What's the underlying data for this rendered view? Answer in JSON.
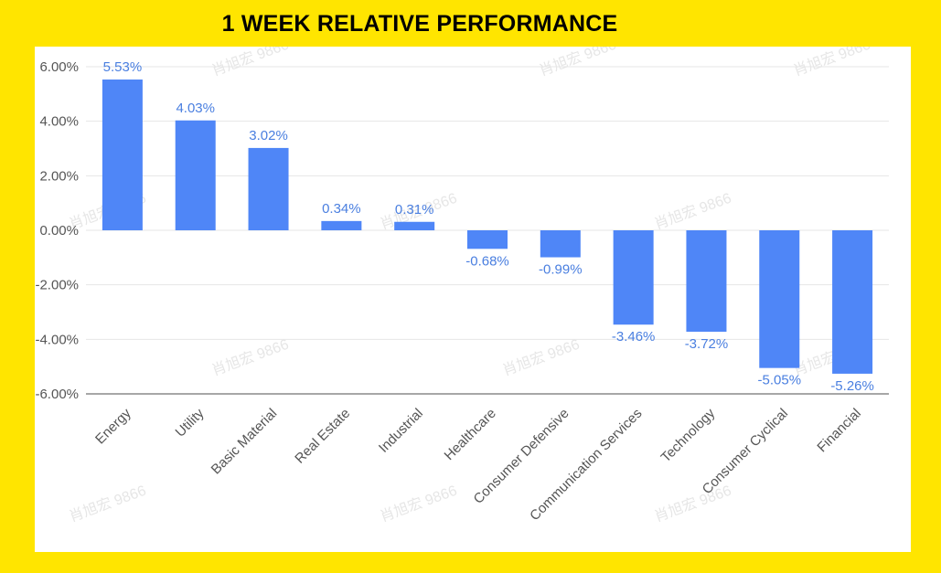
{
  "chart_data": {
    "type": "bar",
    "title": "1 WEEK RELATIVE PERFORMANCE",
    "categories": [
      "Energy",
      "Utility",
      "Basic Material",
      "Real Estate",
      "Industrial",
      "Healthcare",
      "Consumer Defensive",
      "Communication Services",
      "Technology",
      "Consumer Cyclical",
      "Financial"
    ],
    "values": [
      5.53,
      4.03,
      3.02,
      0.34,
      0.31,
      -0.68,
      -0.99,
      -3.46,
      -3.72,
      -5.05,
      -5.26
    ],
    "value_labels": [
      "5.53%",
      "4.03%",
      "3.02%",
      "0.34%",
      "0.31%",
      "-0.68%",
      "-0.99%",
      "-3.46%",
      "-3.72%",
      "-5.05%",
      "-5.26%"
    ],
    "yticks": [
      6,
      4,
      2,
      0,
      -2,
      -4,
      -6
    ],
    "ytick_labels": [
      "6.00%",
      "4.00%",
      "2.00%",
      "0.00%",
      "-2.00%",
      "-4.00%",
      "-6.00%"
    ],
    "ylim": [
      -6,
      6
    ],
    "grid": true,
    "bar_color": "#4F86F7",
    "label_color": "#4A7FE0",
    "watermark_text": "肖旭宏 9866"
  },
  "colors": {
    "background": "#FFE500",
    "panel": "#FFFFFF",
    "grid": "#E6E6E6"
  }
}
